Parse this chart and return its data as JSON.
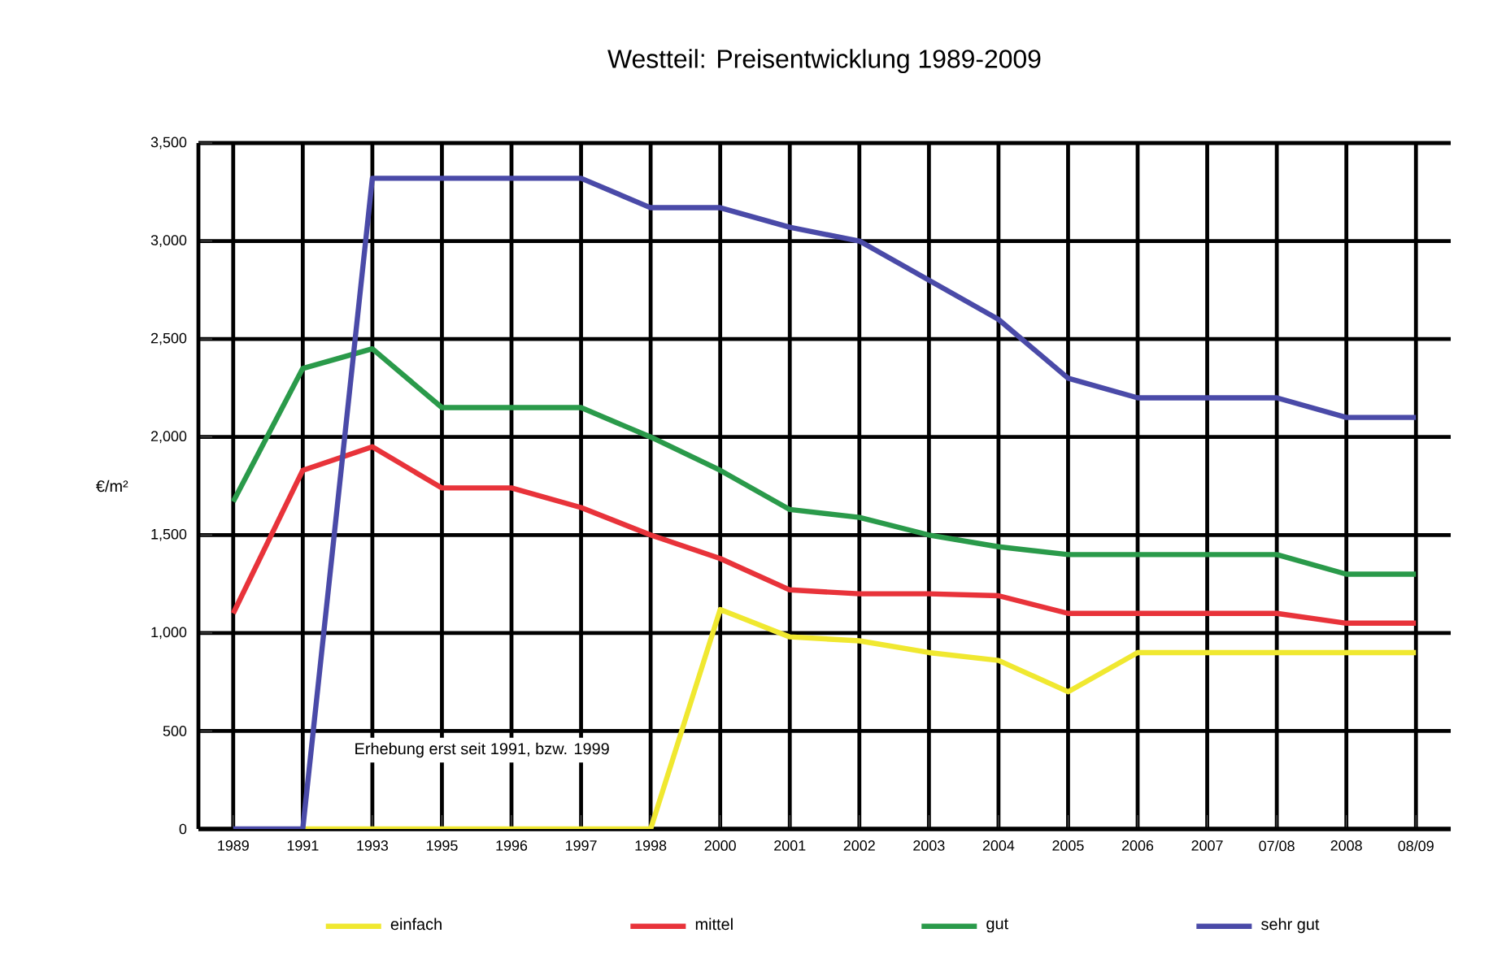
{
  "chart_data": {
    "type": "line",
    "title": "Westteil: Preisentwicklung 1989-2009",
    "ylabel": "€/m²",
    "categories": [
      "1989",
      "1991",
      "1993",
      "1995",
      "1996",
      "1997",
      "1998",
      "2000",
      "2001",
      "2002",
      "2003",
      "2004",
      "2005",
      "2006",
      "2007",
      "07/08",
      "2008",
      "08/09"
    ],
    "series": [
      {
        "name": "einfach",
        "color": "#f0e830",
        "values": [
          null,
          0,
          0,
          0,
          0,
          0,
          0,
          1120,
          980,
          960,
          900,
          860,
          700,
          900,
          900,
          900,
          900,
          900
        ]
      },
      {
        "name": "mittel",
        "color": "#e8333a",
        "values": [
          1100,
          1830,
          1950,
          1740,
          1740,
          1640,
          1500,
          1380,
          1220,
          1200,
          1200,
          1190,
          1100,
          1100,
          1100,
          1100,
          1050,
          1050
        ]
      },
      {
        "name": "gut",
        "color": "#2a9a4a",
        "values": [
          1670,
          2350,
          2450,
          2150,
          2150,
          2150,
          2000,
          1830,
          1630,
          1590,
          1500,
          1440,
          1400,
          1400,
          1400,
          1400,
          1300,
          1300
        ]
      },
      {
        "name": "sehr gut",
        "color": "#4a4aa8",
        "values": [
          0,
          0,
          3320,
          3320,
          3320,
          3320,
          3170,
          3170,
          3070,
          3000,
          2800,
          2600,
          2300,
          2200,
          2200,
          2200,
          2100,
          2100
        ]
      }
    ],
    "ylim": [
      0,
      3500
    ],
    "yticks": [
      {
        "value": 0,
        "label": "0"
      },
      {
        "value": 500,
        "label": "500"
      },
      {
        "value": 1000,
        "label": "1,000"
      },
      {
        "value": 1500,
        "label": "1,500"
      },
      {
        "value": 2000,
        "label": "2,000"
      },
      {
        "value": 2500,
        "label": "2,500"
      },
      {
        "value": 3000,
        "label": "3,000"
      },
      {
        "value": 3500,
        "label": "3,500"
      }
    ],
    "annotations": [
      "Erhebung erst seit 1991, bzw. 1999"
    ],
    "grid": true,
    "legend": "bottom",
    "line_style": "solid",
    "marker": "none"
  }
}
